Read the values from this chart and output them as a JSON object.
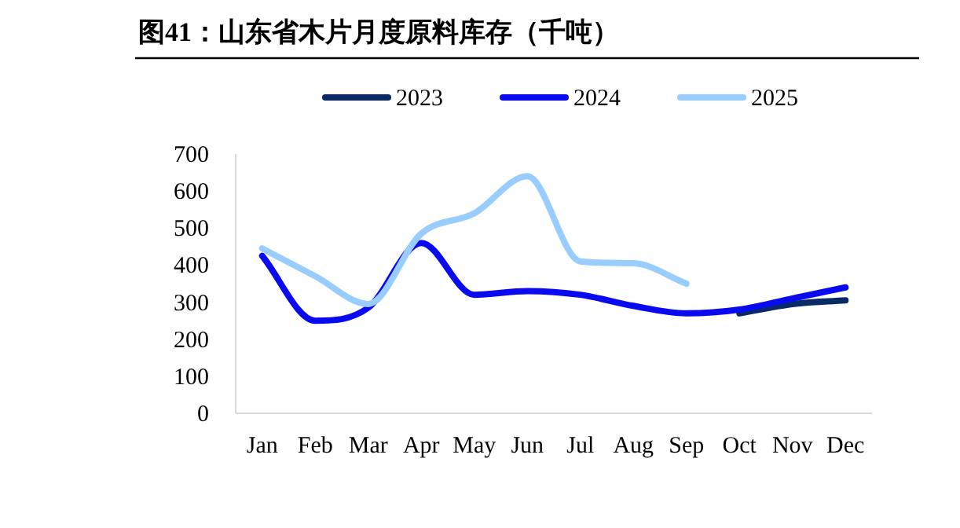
{
  "chart_data": {
    "type": "line",
    "title": "图41：山东省木片月度原料库存（千吨）",
    "categories": [
      "Jan",
      "Feb",
      "Mar",
      "Apr",
      "May",
      "Jun",
      "Jul",
      "Aug",
      "Sep",
      "Oct",
      "Nov",
      "Dec"
    ],
    "series": [
      {
        "name": "2023",
        "color": "#0a2a66",
        "values": [
          null,
          null,
          null,
          null,
          null,
          null,
          null,
          null,
          null,
          270,
          295,
          305
        ]
      },
      {
        "name": "2024",
        "color": "#0a0af0",
        "values": [
          425,
          250,
          285,
          460,
          320,
          330,
          320,
          290,
          270,
          280,
          310,
          340
        ]
      },
      {
        "name": "2025",
        "color": "#99ccff",
        "values": [
          445,
          370,
          295,
          485,
          540,
          640,
          410,
          405,
          350,
          null,
          null,
          null
        ]
      }
    ],
    "ylim": [
      0,
      700
    ],
    "yticks": [
      0,
      100,
      200,
      300,
      400,
      500,
      600,
      700
    ],
    "grid": false,
    "legend": "top",
    "marker": "none",
    "line_style": "solid"
  }
}
